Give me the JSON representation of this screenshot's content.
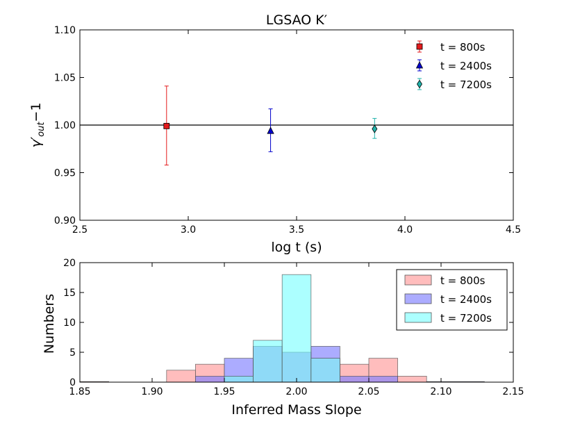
{
  "chart_data": [
    {
      "type": "scatter",
      "title": "LGSAO K′",
      "xlabel": "log t (s)",
      "ylabel_main": "γ′",
      "ylabel_sub": "out",
      "ylabel_suffix": "−1",
      "xlim": [
        2.5,
        4.5
      ],
      "ylim": [
        0.9,
        1.1
      ],
      "xticks": [
        "2.5",
        "3.0",
        "3.5",
        "4.0",
        "4.5"
      ],
      "yticks": [
        "0.90",
        "0.95",
        "1.00",
        "1.05",
        "1.10"
      ],
      "reference_line_y": 1.0,
      "legend_position": "top-right",
      "series": [
        {
          "name": "t = 800s",
          "marker": "square",
          "color": "#e41a1c",
          "x": 2.9,
          "y": 0.999,
          "yerr_low": 0.958,
          "yerr_high": 1.041
        },
        {
          "name": "t = 2400s",
          "marker": "triangle",
          "color": "#0000cc",
          "x": 3.38,
          "y": 0.994,
          "yerr_low": 0.972,
          "yerr_high": 1.017
        },
        {
          "name": "t = 7200s",
          "marker": "diamond",
          "color": "#20b2aa",
          "x": 3.86,
          "y": 0.996,
          "yerr_low": 0.986,
          "yerr_high": 1.007
        }
      ]
    },
    {
      "type": "bar",
      "xlabel": "Inferred Mass Slope",
      "ylabel": "Numbers",
      "xlim": [
        1.85,
        2.15
      ],
      "ylim": [
        0,
        20
      ],
      "xticks": [
        "1.85",
        "1.90",
        "1.95",
        "2.00",
        "2.05",
        "2.10",
        "2.15"
      ],
      "yticks": [
        "0",
        "5",
        "10",
        "15",
        "20"
      ],
      "legend_position": "top-right",
      "series": [
        {
          "name": "t = 800s",
          "color": "#ff9999",
          "bins": [
            [
              1.85,
              1.87,
              0.1
            ],
            [
              1.91,
              1.93,
              2
            ],
            [
              1.93,
              1.95,
              3
            ],
            [
              1.95,
              1.97,
              1
            ],
            [
              1.97,
              1.99,
              6
            ],
            [
              1.99,
              2.01,
              5
            ],
            [
              2.01,
              2.03,
              4
            ],
            [
              2.03,
              2.05,
              3
            ],
            [
              2.05,
              2.07,
              4
            ],
            [
              2.07,
              2.09,
              1
            ]
          ]
        },
        {
          "name": "t = 2400s",
          "color": "#8080ff",
          "bins": [
            [
              1.93,
              1.95,
              1
            ],
            [
              1.95,
              1.97,
              4
            ],
            [
              1.97,
              1.99,
              6
            ],
            [
              1.99,
              2.01,
              5
            ],
            [
              2.01,
              2.03,
              6
            ],
            [
              2.03,
              2.05,
              1
            ],
            [
              2.05,
              2.07,
              1
            ],
            [
              2.09,
              2.13,
              0.1
            ]
          ]
        },
        {
          "name": "t = 7200s",
          "color": "#80ffff",
          "bins": [
            [
              1.95,
              1.97,
              1
            ],
            [
              1.97,
              1.99,
              7
            ],
            [
              1.99,
              2.01,
              18
            ],
            [
              2.01,
              2.03,
              4
            ]
          ]
        }
      ]
    }
  ]
}
